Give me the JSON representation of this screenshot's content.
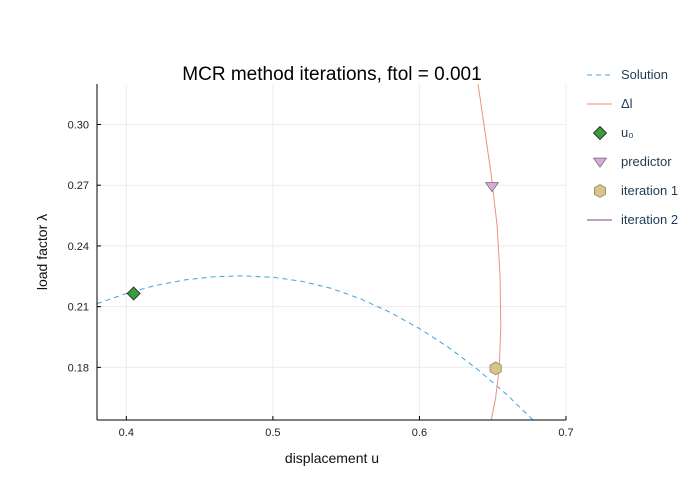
{
  "chart_data": {
    "type": "line",
    "title": "MCR method iterations, ftol = 0.001",
    "xlabel": "displacement u",
    "ylabel": "load factor λ",
    "xlim": [
      0.38,
      0.7
    ],
    "ylim": [
      0.154,
      0.32
    ],
    "xticks": [
      0.4,
      0.5,
      0.6,
      0.7
    ],
    "xtick_labels": [
      "0.4",
      "0.5",
      "0.6",
      "0.7"
    ],
    "yticks": [
      0.18,
      0.21,
      0.24,
      0.27,
      0.3
    ],
    "ytick_labels": [
      "0.18",
      "0.21",
      "0.24",
      "0.27",
      "0.30"
    ],
    "grid": true,
    "legend_position": "outside-right",
    "series": [
      {
        "name": "Solution",
        "kind": "line",
        "style": "dashed",
        "color": "#3da4dc",
        "x": [
          0.38,
          0.4,
          0.42,
          0.44,
          0.46,
          0.48,
          0.5,
          0.52,
          0.54,
          0.56,
          0.58,
          0.6,
          0.62,
          0.64,
          0.66,
          0.68,
          0.695
        ],
        "y": [
          0.2115,
          0.2165,
          0.2205,
          0.2232,
          0.2248,
          0.2252,
          0.2245,
          0.2225,
          0.219,
          0.2138,
          0.2072,
          0.1992,
          0.1898,
          0.1788,
          0.1663,
          0.1522,
          0.141
        ]
      },
      {
        "name": "Δl",
        "kind": "line",
        "style": "solid",
        "color": "#e8937a",
        "x": [
          0.638,
          0.644,
          0.649,
          0.653,
          0.655,
          0.6555,
          0.6545,
          0.652,
          0.648,
          0.644
        ],
        "y": [
          0.33,
          0.3,
          0.275,
          0.25,
          0.225,
          0.2,
          0.18,
          0.165,
          0.15,
          0.14
        ]
      },
      {
        "name": "u₀",
        "kind": "marker",
        "marker": "diamond",
        "color": "#3a9b3f",
        "x": [
          0.405
        ],
        "y": [
          0.2165
        ]
      },
      {
        "name": "predictor",
        "kind": "marker",
        "marker": "triangle-down",
        "color": "#d9a9d9",
        "x": [
          0.6495
        ],
        "y": [
          0.2694
        ]
      },
      {
        "name": "iteration 1",
        "kind": "marker",
        "marker": "hexagon",
        "color": "#d7c38e",
        "x": [
          0.652
        ],
        "y": [
          0.1795
        ]
      },
      {
        "name": "iteration 2",
        "kind": "marker",
        "marker": "line",
        "color": "#7b4a7b",
        "x": [],
        "y": []
      }
    ]
  }
}
